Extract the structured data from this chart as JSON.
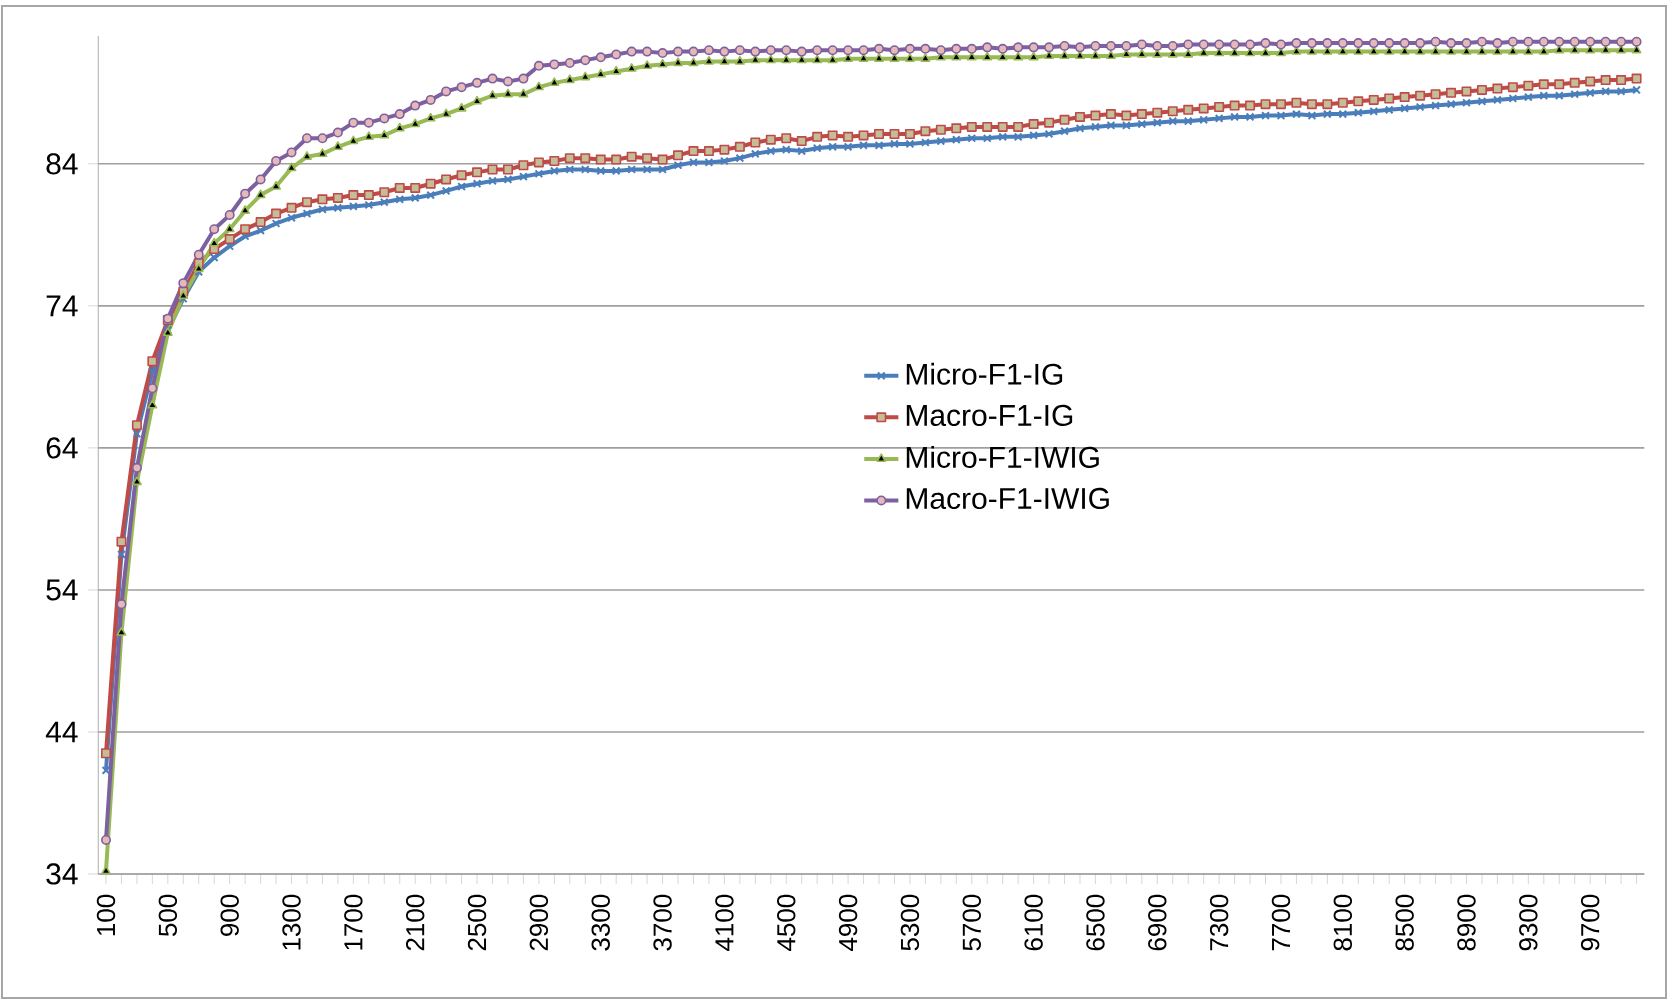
{
  "chart_data": {
    "type": "line",
    "categories": [
      "100",
      null,
      null,
      null,
      "500",
      null,
      null,
      null,
      "900",
      null,
      null,
      null,
      "1300",
      null,
      null,
      null,
      "1700",
      null,
      null,
      null,
      "2100",
      null,
      null,
      null,
      "2500",
      null,
      null,
      null,
      "2900",
      null,
      null,
      null,
      "3300",
      null,
      null,
      null,
      "3700",
      null,
      null,
      null,
      "4100",
      null,
      null,
      null,
      "4500",
      null,
      null,
      null,
      "4900",
      null,
      null,
      null,
      "5300",
      null,
      null,
      null,
      "5700",
      null,
      null,
      null,
      "6100",
      null,
      null,
      null,
      "6500",
      null,
      null,
      null,
      "6900",
      null,
      null,
      null,
      "7300",
      null,
      null,
      null,
      "7700",
      null,
      null,
      null,
      "8100",
      null,
      null,
      null,
      "8500",
      null,
      null,
      null,
      "8900",
      null,
      null,
      null,
      "9300",
      null,
      null,
      null,
      "9700",
      null,
      null,
      null
    ],
    "series": [
      {
        "name": "Micro-F1-IG",
        "color": "#4a7ebb",
        "marker": "cross",
        "values": [
          41.3,
          56.5,
          65.0,
          69.4,
          72.3,
          74.5,
          76.4,
          77.4,
          78.2,
          78.9,
          79.3,
          79.8,
          80.2,
          80.5,
          80.8,
          80.9,
          81.0,
          81.1,
          81.3,
          81.5,
          81.6,
          81.8,
          82.1,
          82.4,
          82.6,
          82.8,
          82.9,
          83.1,
          83.3,
          83.5,
          83.6,
          83.6,
          83.5,
          83.5,
          83.6,
          83.6,
          83.6,
          83.9,
          84.1,
          84.1,
          84.2,
          84.4,
          84.7,
          84.9,
          85.0,
          84.9,
          85.1,
          85.2,
          85.2,
          85.3,
          85.3,
          85.4,
          85.4,
          85.5,
          85.6,
          85.7,
          85.8,
          85.8,
          85.9,
          85.9,
          86.0,
          86.1,
          86.3,
          86.5,
          86.6,
          86.7,
          86.7,
          86.8,
          86.9,
          87.0,
          87.0,
          87.1,
          87.2,
          87.3,
          87.3,
          87.4,
          87.4,
          87.5,
          87.4,
          87.5,
          87.5,
          87.6,
          87.7,
          87.8,
          87.9,
          88.0,
          88.1,
          88.2,
          88.3,
          88.4,
          88.5,
          88.6,
          88.7,
          88.8,
          88.8,
          88.9,
          89.0,
          89.1,
          89.1,
          89.2
        ]
      },
      {
        "name": "Macro-F1-IG",
        "color": "#be4b48",
        "marker": "square",
        "values": [
          42.5,
          57.4,
          65.6,
          70.1,
          73.0,
          75.0,
          77.0,
          78.0,
          78.7,
          79.4,
          79.9,
          80.5,
          80.9,
          81.3,
          81.5,
          81.6,
          81.8,
          81.8,
          82.0,
          82.3,
          82.3,
          82.6,
          82.9,
          83.2,
          83.4,
          83.6,
          83.6,
          83.9,
          84.1,
          84.2,
          84.4,
          84.4,
          84.3,
          84.3,
          84.5,
          84.4,
          84.3,
          84.6,
          84.9,
          84.9,
          85.0,
          85.2,
          85.5,
          85.7,
          85.8,
          85.6,
          85.9,
          86.0,
          85.9,
          86.0,
          86.1,
          86.1,
          86.1,
          86.3,
          86.4,
          86.5,
          86.6,
          86.6,
          86.6,
          86.6,
          86.8,
          86.9,
          87.1,
          87.3,
          87.4,
          87.5,
          87.4,
          87.5,
          87.6,
          87.7,
          87.8,
          87.9,
          88.0,
          88.1,
          88.1,
          88.2,
          88.2,
          88.3,
          88.2,
          88.2,
          88.3,
          88.4,
          88.5,
          88.6,
          88.7,
          88.8,
          88.9,
          89.0,
          89.1,
          89.2,
          89.3,
          89.4,
          89.5,
          89.6,
          89.6,
          89.7,
          89.8,
          89.9,
          89.9,
          90.0
        ]
      },
      {
        "name": "Micro-F1-IWIG",
        "color": "#98b954",
        "marker": "triangle",
        "values": [
          34.2,
          51.0,
          61.6,
          67.0,
          72.1,
          74.7,
          76.6,
          78.4,
          79.4,
          80.7,
          81.8,
          82.4,
          83.7,
          84.5,
          84.7,
          85.2,
          85.6,
          85.9,
          86.0,
          86.5,
          86.8,
          87.2,
          87.5,
          87.9,
          88.4,
          88.8,
          88.9,
          88.9,
          89.4,
          89.7,
          89.9,
          90.1,
          90.3,
          90.5,
          90.7,
          90.9,
          91.0,
          91.1,
          91.1,
          91.2,
          91.2,
          91.2,
          91.3,
          91.3,
          91.3,
          91.3,
          91.3,
          91.3,
          91.4,
          91.4,
          91.4,
          91.4,
          91.4,
          91.4,
          91.5,
          91.5,
          91.5,
          91.5,
          91.5,
          91.5,
          91.5,
          91.6,
          91.6,
          91.6,
          91.6,
          91.6,
          91.7,
          91.7,
          91.7,
          91.7,
          91.7,
          91.8,
          91.8,
          91.8,
          91.8,
          91.8,
          91.8,
          91.9,
          91.9,
          91.9,
          91.9,
          91.9,
          91.9,
          91.9,
          91.9,
          91.9,
          91.9,
          91.9,
          91.9,
          91.9,
          91.9,
          91.9,
          91.9,
          91.9,
          92.0,
          92.0,
          92.0,
          92.0,
          92.0,
          92.0
        ]
      },
      {
        "name": "Macro-F1-IWIG",
        "color": "#7d60a0",
        "marker": "circle",
        "values": [
          36.4,
          53.0,
          62.6,
          68.2,
          73.1,
          75.6,
          77.6,
          79.4,
          80.4,
          81.9,
          82.9,
          84.2,
          84.8,
          85.8,
          85.8,
          86.2,
          86.9,
          86.9,
          87.2,
          87.5,
          88.1,
          88.5,
          89.1,
          89.4,
          89.7,
          90.0,
          89.8,
          90.0,
          90.9,
          91.0,
          91.1,
          91.3,
          91.5,
          91.7,
          91.9,
          91.9,
          91.8,
          91.9,
          91.9,
          92.0,
          91.9,
          92.0,
          91.9,
          92.0,
          92.0,
          91.9,
          92.0,
          92.0,
          92.0,
          92.0,
          92.1,
          92.0,
          92.1,
          92.1,
          92.0,
          92.1,
          92.1,
          92.2,
          92.1,
          92.2,
          92.2,
          92.2,
          92.3,
          92.2,
          92.3,
          92.3,
          92.3,
          92.4,
          92.3,
          92.3,
          92.4,
          92.4,
          92.4,
          92.4,
          92.4,
          92.5,
          92.4,
          92.5,
          92.5,
          92.5,
          92.5,
          92.5,
          92.5,
          92.5,
          92.5,
          92.5,
          92.6,
          92.5,
          92.5,
          92.6,
          92.5,
          92.6,
          92.6,
          92.6,
          92.6,
          92.6,
          92.6,
          92.6,
          92.6,
          92.6
        ]
      }
    ],
    "ylim": [
      34,
      93
    ],
    "yticks": [
      34,
      44,
      54,
      64,
      74,
      84
    ],
    "grid": "y",
    "legend": "center",
    "line_style": "solid"
  }
}
